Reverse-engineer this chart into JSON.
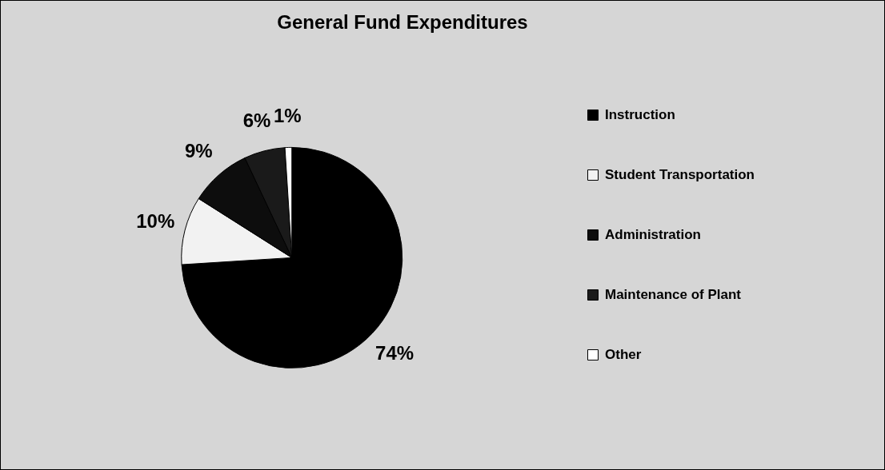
{
  "chart_data": {
    "type": "pie",
    "title": "General Fund Expenditures",
    "categories": [
      "Instruction",
      "Student Transportation",
      "Administration",
      "Maintenance of Plant",
      "Other"
    ],
    "values": [
      74,
      10,
      9,
      6,
      1
    ],
    "colors": [
      "#000000",
      "#f2f2f2",
      "#0d0d0d",
      "#1a1a1a",
      "#ffffff"
    ],
    "value_labels": [
      "74%",
      "10%",
      "9%",
      "6%",
      "1%"
    ],
    "legend": "right"
  }
}
